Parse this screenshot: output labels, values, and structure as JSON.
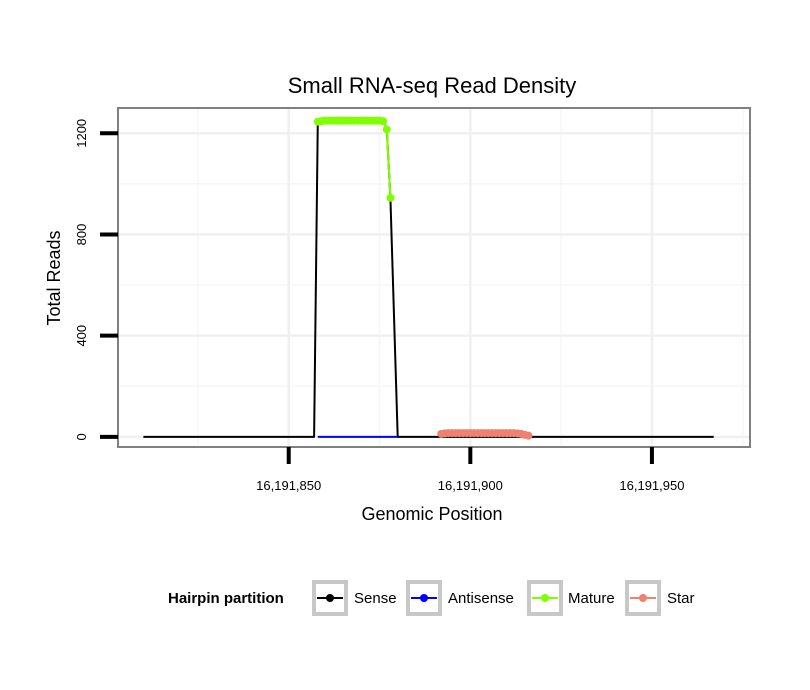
{
  "chart_data": {
    "type": "line",
    "title": "Small RNA-seq Read Density",
    "xlabel": "Genomic Position",
    "ylabel": "Total Reads",
    "xlim": [
      16191803,
      16191977
    ],
    "ylim": [
      -40,
      1300
    ],
    "x_ticks": [
      {
        "value": 16191850,
        "label": "16,191,850"
      },
      {
        "value": 16191900,
        "label": "16,191,900"
      },
      {
        "value": 16191950,
        "label": "16,191,950"
      }
    ],
    "y_ticks": [
      {
        "value": 0,
        "label": "0"
      },
      {
        "value": 400,
        "label": "400"
      },
      {
        "value": 800,
        "label": "800"
      },
      {
        "value": 1200,
        "label": "1200"
      }
    ],
    "grid": true,
    "legend": {
      "title": "Hairpin partition",
      "position": "bottom",
      "entries": [
        {
          "name": "Sense",
          "color": "#000000"
        },
        {
          "name": "Antisense",
          "color": "#0000ff"
        },
        {
          "name": "Mature",
          "color": "#7fff00"
        },
        {
          "name": "Star",
          "color": "#f08070"
        }
      ]
    },
    "series": [
      {
        "name": "Sense",
        "color": "#000000",
        "markers": false,
        "points": [
          [
            16191810,
            0
          ],
          [
            16191857,
            0
          ],
          [
            16191858,
            1250
          ],
          [
            16191876,
            1250
          ],
          [
            16191877,
            1215
          ],
          [
            16191878,
            945
          ],
          [
            16191880,
            0
          ],
          [
            16191967,
            0
          ]
        ]
      },
      {
        "name": "Antisense",
        "color": "#0000ff",
        "markers": false,
        "points": [
          [
            16191858,
            0
          ],
          [
            16191880,
            0
          ]
        ]
      },
      {
        "name": "Mature",
        "color": "#7fff00",
        "markers": true,
        "points": [
          [
            16191858,
            1246
          ],
          [
            16191859,
            1248
          ],
          [
            16191860,
            1250
          ],
          [
            16191861,
            1250
          ],
          [
            16191862,
            1250
          ],
          [
            16191863,
            1250
          ],
          [
            16191864,
            1250
          ],
          [
            16191865,
            1250
          ],
          [
            16191866,
            1250
          ],
          [
            16191867,
            1250
          ],
          [
            16191868,
            1250
          ],
          [
            16191869,
            1250
          ],
          [
            16191870,
            1250
          ],
          [
            16191871,
            1250
          ],
          [
            16191872,
            1250
          ],
          [
            16191873,
            1250
          ],
          [
            16191874,
            1250
          ],
          [
            16191875,
            1250
          ],
          [
            16191876,
            1248
          ],
          [
            16191877,
            1215
          ],
          [
            16191878,
            945
          ]
        ]
      },
      {
        "name": "Star",
        "color": "#f08070",
        "markers": true,
        "points": [
          [
            16191892,
            12
          ],
          [
            16191893,
            14
          ],
          [
            16191894,
            15
          ],
          [
            16191895,
            15
          ],
          [
            16191896,
            15
          ],
          [
            16191897,
            15
          ],
          [
            16191898,
            15
          ],
          [
            16191899,
            15
          ],
          [
            16191900,
            15
          ],
          [
            16191901,
            15
          ],
          [
            16191902,
            15
          ],
          [
            16191903,
            15
          ],
          [
            16191904,
            15
          ],
          [
            16191905,
            15
          ],
          [
            16191906,
            15
          ],
          [
            16191907,
            15
          ],
          [
            16191908,
            15
          ],
          [
            16191909,
            15
          ],
          [
            16191910,
            15
          ],
          [
            16191911,
            15
          ],
          [
            16191912,
            15
          ],
          [
            16191913,
            14
          ],
          [
            16191914,
            12
          ],
          [
            16191915,
            8
          ],
          [
            16191916,
            5
          ]
        ]
      }
    ]
  }
}
